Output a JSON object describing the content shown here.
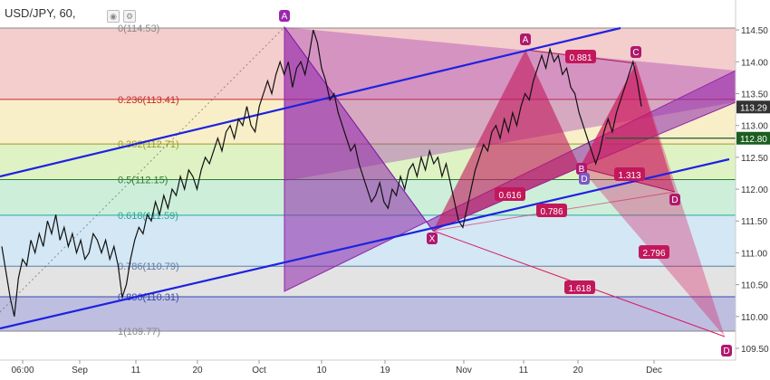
{
  "header": {
    "title": "USD/JPY, 60,",
    "icons": [
      "eye-icon",
      "gear-icon"
    ]
  },
  "chart_data": {
    "type": "line",
    "symbol": "USD/JPY",
    "interval": "60",
    "ylim": [
      109.3,
      115.0
    ],
    "y_ticks": [
      "114.50",
      "114.00",
      "113.50",
      "113.00",
      "112.50",
      "112.00",
      "111.50",
      "111.00",
      "110.50",
      "110.00",
      "109.50"
    ],
    "x_ticks": [
      "06:00",
      "Sep",
      "11",
      "20",
      "Oct",
      "10",
      "19",
      "Nov",
      "11",
      "20",
      "Dec"
    ],
    "price_labels": [
      {
        "value": "113.29",
        "color": "#333333"
      },
      {
        "value": "112.80",
        "color": "#1b5e20"
      }
    ],
    "fib_levels": [
      {
        "ratio": 0,
        "price": 114.53,
        "label": "0(114.53)",
        "color": "#888888",
        "fill": "#f2c4c4"
      },
      {
        "ratio": 0.236,
        "price": 113.41,
        "label": "0.236(113.41)",
        "color": "#c62828",
        "fill": "#f7ecc0"
      },
      {
        "ratio": 0.382,
        "price": 112.71,
        "label": "0.382(112.71)",
        "color": "#9e9d24",
        "fill": "#d9f0b8"
      },
      {
        "ratio": 0.5,
        "price": 112.15,
        "label": "0.5(112.15)",
        "color": "#2e7d32",
        "fill": "#c4ecd4"
      },
      {
        "ratio": 0.618,
        "price": 111.59,
        "label": "0.618(111.59)",
        "color": "#26a69a",
        "fill": "#cbe3f2"
      },
      {
        "ratio": 0.786,
        "price": 110.79,
        "label": "0.786(110.79)",
        "color": "#5c7fa8",
        "fill": "#dedede"
      },
      {
        "ratio": 0.886,
        "price": 110.31,
        "label": "0.886(110.31)",
        "color": "#3949ab",
        "fill": "#b3b3dc"
      },
      {
        "ratio": 1,
        "price": 109.77,
        "label": "1(109.77)",
        "color": "#888888",
        "fill": null
      }
    ],
    "pattern_points": [
      {
        "label": "A",
        "color": "#9c27b0"
      },
      {
        "label": "X",
        "color": "#b0186e"
      },
      {
        "label": "A",
        "color": "#b0186e"
      },
      {
        "label": "B",
        "color": "#b0186e"
      },
      {
        "label": "D",
        "color": "#7e57c2"
      },
      {
        "label": "C",
        "color": "#b0186e"
      },
      {
        "label": "D",
        "color": "#b0186e"
      },
      {
        "label": "D",
        "color": "#b0186e"
      }
    ],
    "ratio_labels": [
      "0.881",
      "0.616",
      "0.786",
      "1.313",
      "2.796",
      "1.618"
    ],
    "price_series": [
      111.1,
      110.7,
      110.3,
      110.0,
      110.6,
      110.9,
      110.8,
      111.2,
      111.0,
      111.3,
      111.1,
      111.5,
      111.3,
      111.6,
      111.2,
      111.4,
      111.1,
      111.3,
      111.0,
      111.2,
      110.9,
      111.0,
      111.3,
      111.2,
      111.0,
      111.2,
      110.9,
      111.1,
      110.8,
      110.3,
      110.5,
      110.9,
      111.2,
      111.4,
      111.3,
      111.6,
      111.5,
      111.8,
      111.6,
      111.9,
      111.7,
      112.0,
      111.9,
      112.2,
      112.0,
      112.3,
      112.2,
      112.0,
      112.3,
      112.5,
      112.4,
      112.6,
      112.8,
      112.6,
      112.9,
      113.0,
      112.8,
      113.1,
      113.0,
      113.3,
      113.0,
      112.9,
      113.3,
      113.5,
      113.7,
      113.5,
      113.8,
      114.0,
      113.8,
      114.0,
      113.6,
      113.9,
      114.0,
      113.8,
      114.1,
      114.5,
      114.3,
      113.9,
      113.7,
      113.4,
      113.5,
      113.2,
      113.0,
      112.8,
      112.6,
      112.7,
      112.4,
      112.2,
      112.0,
      111.8,
      111.9,
      112.1,
      111.8,
      111.7,
      112.0,
      111.9,
      112.2,
      112.0,
      112.3,
      112.4,
      112.2,
      112.5,
      112.3,
      112.6,
      112.4,
      112.5,
      112.2,
      112.4,
      112.1,
      111.8,
      111.5,
      111.4,
      111.7,
      112.0,
      112.3,
      112.5,
      112.7,
      112.6,
      112.9,
      113.0,
      112.8,
      113.1,
      112.9,
      113.2,
      113.0,
      113.3,
      113.5,
      113.4,
      113.7,
      113.9,
      114.1,
      113.9,
      114.2,
      114.0,
      114.1,
      113.8,
      113.9,
      113.6,
      113.5,
      113.2,
      113.0,
      112.8,
      112.6,
      112.4,
      112.6,
      112.9,
      113.1,
      112.9,
      113.2,
      113.4,
      113.6,
      113.8,
      114.0,
      113.7,
      113.3
    ],
    "grid": false,
    "legend": "none"
  }
}
